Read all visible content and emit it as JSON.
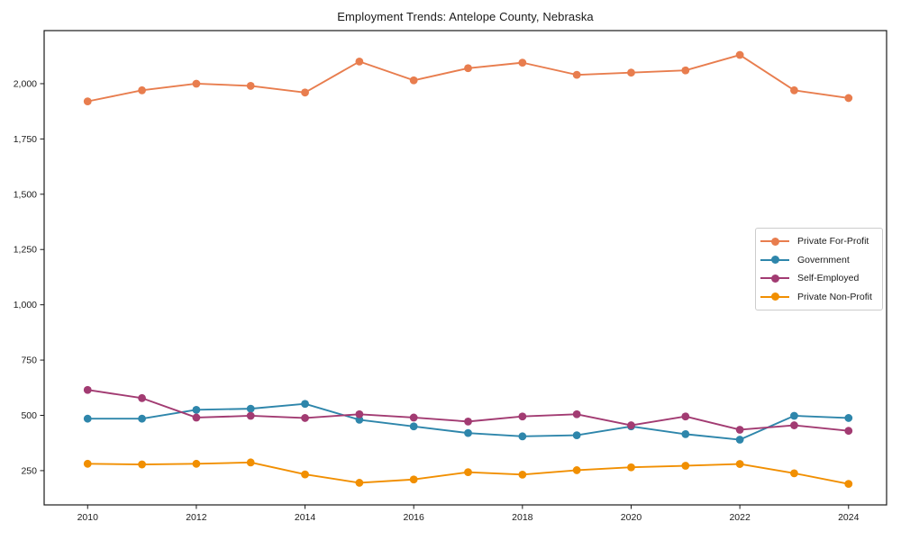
{
  "page": {
    "background": "#ffffff"
  },
  "chart_data": {
    "type": "line",
    "title": "Employment Trends: Antelope County, Nebraska",
    "xlabel": "",
    "ylabel": "",
    "grid": false,
    "legend_position": "center right",
    "x": [
      2010,
      2011,
      2012,
      2013,
      2014,
      2015,
      2016,
      2017,
      2018,
      2019,
      2020,
      2021,
      2022,
      2023,
      2024
    ],
    "x_ticks": [
      2010,
      2012,
      2014,
      2016,
      2018,
      2020,
      2022,
      2024
    ],
    "x_tick_labels": [
      "2010",
      "2012",
      "2014",
      "2016",
      "2018",
      "2020",
      "2022",
      "2024"
    ],
    "y_ticks": [
      250,
      500,
      750,
      1000,
      1250,
      1500,
      1750,
      2000
    ],
    "y_tick_labels": [
      "250",
      "500",
      "750",
      "1,000",
      "1,250",
      "1,500",
      "1,750",
      "2,000"
    ],
    "xlim": [
      2009.2,
      2024.7
    ],
    "ylim": [
      95,
      2240
    ],
    "series": [
      {
        "name": "Private For-Profit",
        "color": "#E87D4E",
        "values": [
          1920,
          1970,
          2000,
          1990,
          1960,
          2100,
          2015,
          2070,
          2095,
          2040,
          2050,
          2060,
          2130,
          1970,
          1935
        ]
      },
      {
        "name": "Government",
        "color": "#2E86AB",
        "values": [
          485,
          485,
          525,
          530,
          552,
          480,
          450,
          420,
          405,
          410,
          450,
          415,
          390,
          498,
          488
        ]
      },
      {
        "name": "Self-Employed",
        "color": "#A23B72",
        "values": [
          615,
          578,
          490,
          498,
          488,
          505,
          490,
          472,
          495,
          505,
          455,
          495,
          435,
          455,
          430
        ]
      },
      {
        "name": "Private Non-Profit",
        "color": "#F18F01",
        "values": [
          281,
          278,
          281,
          287,
          233,
          195,
          210,
          243,
          232,
          252,
          265,
          272,
          280,
          238,
          190
        ]
      }
    ]
  }
}
